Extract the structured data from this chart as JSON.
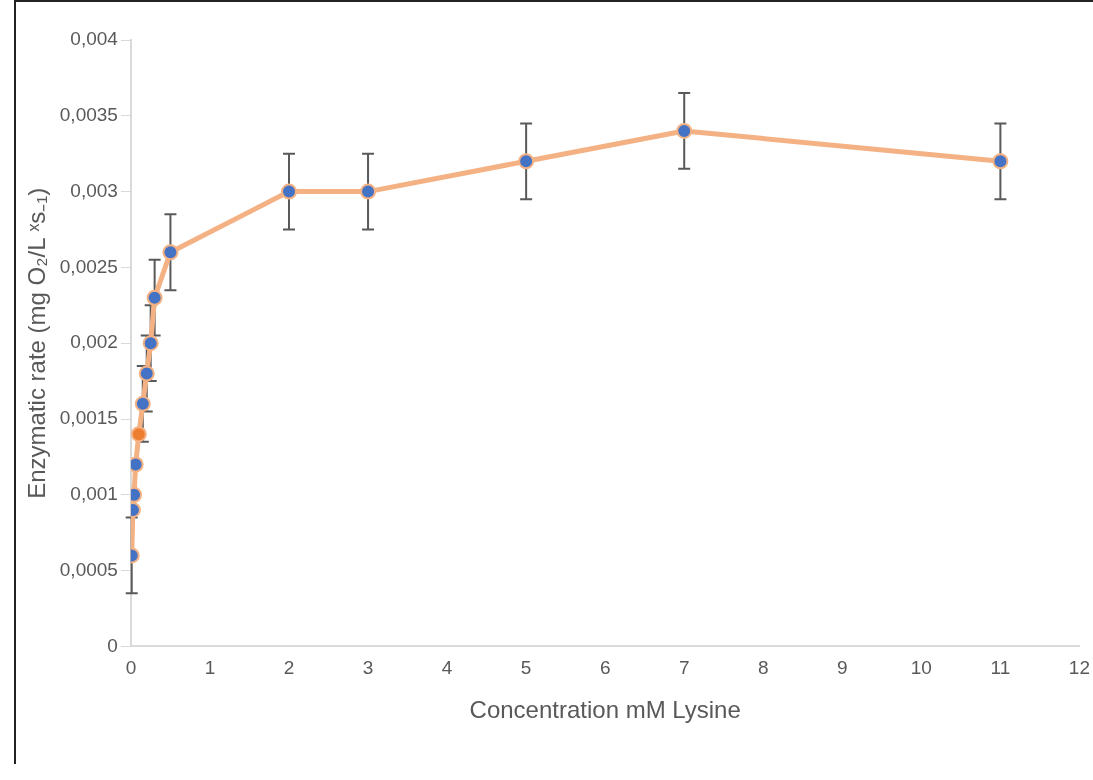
{
  "chart_data": {
    "type": "line",
    "xlabel": "Concentration mM Lysine",
    "ylabel": "Enzymatic rate (mg O₂/L ˣs₋₁)",
    "x": [
      0.01,
      0.025,
      0.04,
      0.06,
      0.1,
      0.15,
      0.2,
      0.25,
      0.3,
      0.5,
      2,
      3,
      5,
      7,
      11
    ],
    "series": [
      {
        "color": "#f4b183",
        "colors": [
          "#4472c4",
          "#4472c4",
          "#4472c4",
          "#4472c4",
          "#ed7d31",
          "#4472c4",
          "#4472c4",
          "#4472c4",
          "#4472c4",
          "#4472c4",
          "#4472c4",
          "#4472c4",
          "#4472c4",
          "#4472c4",
          "#4472c4"
        ],
        "values": [
          0.0006,
          0.0009,
          0.001,
          0.0012,
          0.0014,
          0.0016,
          0.0018,
          0.002,
          0.0023,
          0.0026,
          0.003,
          0.003,
          0.0032,
          0.0034,
          0.0032
        ],
        "errors": [
          0.00025,
          null,
          null,
          null,
          null,
          0.00025,
          0.00025,
          0.00025,
          0.00025,
          0.00025,
          0.00025,
          0.00025,
          0.00025,
          0.00025,
          0.00025
        ]
      }
    ],
    "xlim": [
      0,
      12
    ],
    "xticks": [
      0,
      1,
      2,
      3,
      4,
      5,
      6,
      7,
      8,
      9,
      10,
      11,
      12
    ],
    "ylim": [
      0,
      0.004
    ],
    "yticks": [
      {
        "value": 0,
        "label": "0"
      },
      {
        "value": 0.0005,
        "label": "0,0005"
      },
      {
        "value": 0.001,
        "label": "0,001"
      },
      {
        "value": 0.0015,
        "label": "0,0015"
      },
      {
        "value": 0.002,
        "label": "0,002"
      },
      {
        "value": 0.0025,
        "label": "0,0025"
      },
      {
        "value": 0.003,
        "label": "0,003"
      },
      {
        "value": 0.0035,
        "label": "0,0035"
      },
      {
        "value": 0.004,
        "label": "0,004"
      }
    ],
    "grid": false,
    "legend": false,
    "marker": "circle",
    "line_style": "solid"
  }
}
